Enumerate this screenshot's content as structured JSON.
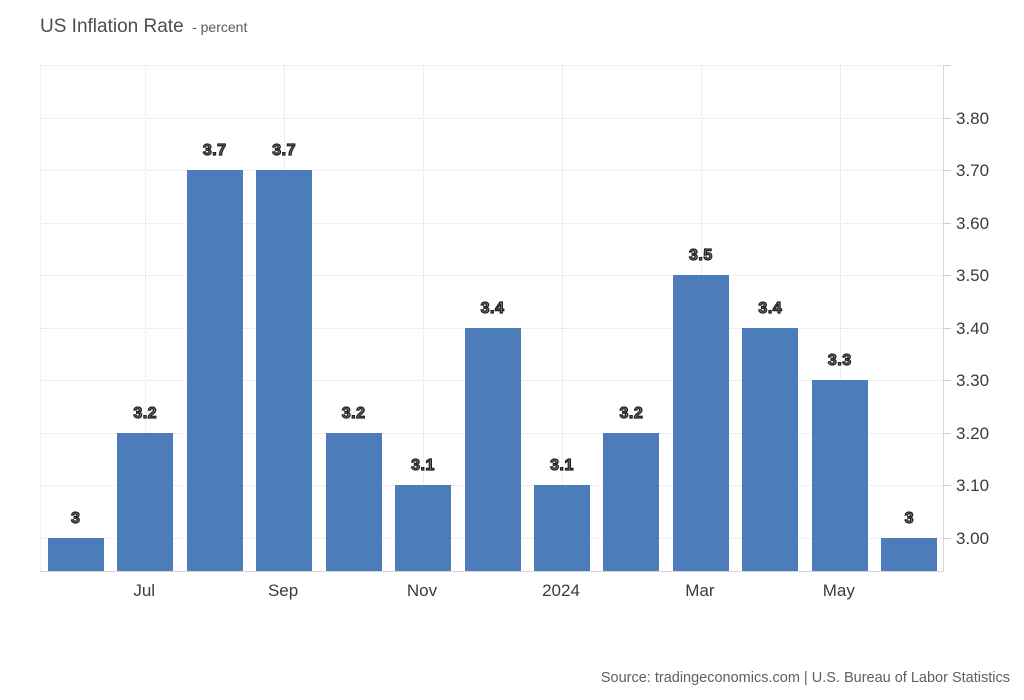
{
  "header": {
    "title": "US Inflation Rate",
    "subtitle": "- percent"
  },
  "footer": {
    "source": "Source: tradingeconomics.com | U.S. Bureau of Labor Statistics"
  },
  "colors": {
    "bar": "#4d7cba",
    "grid": "#e0e0e0",
    "axis_line": "#d6d6d6",
    "title": "#4d4d4d",
    "tick_label": "#3b3b3b",
    "value_label_fill": "#7d7d7d",
    "value_label_stroke": "#1f1f1f",
    "source": "#5f5f5f",
    "background": "#ffffff"
  },
  "chart_data": {
    "type": "bar",
    "title": "US Inflation Rate",
    "subtitle": "percent",
    "categories": [
      "",
      "Jul",
      "",
      "Sep",
      "",
      "Nov",
      "",
      "2024",
      "",
      "Mar",
      "",
      "May",
      ""
    ],
    "values": [
      3,
      3.2,
      3.7,
      3.7,
      3.2,
      3.1,
      3.4,
      3.1,
      3.2,
      3.5,
      3.4,
      3.3,
      3
    ],
    "value_labels": [
      "3",
      "3.2",
      "3.7",
      "3.7",
      "3.2",
      "3.1",
      "3.4",
      "3.1",
      "3.2",
      "3.5",
      "3.4",
      "3.3",
      "3"
    ],
    "x_ticks": [
      {
        "index": 1,
        "label": "Jul"
      },
      {
        "index": 3,
        "label": "Sep"
      },
      {
        "index": 5,
        "label": "Nov"
      },
      {
        "index": 7,
        "label": "2024"
      },
      {
        "index": 9,
        "label": "Mar"
      },
      {
        "index": 11,
        "label": "May"
      }
    ],
    "y_ticks": [
      {
        "value": 3.0,
        "label": "3.00"
      },
      {
        "value": 3.1,
        "label": "3.10"
      },
      {
        "value": 3.2,
        "label": "3.20"
      },
      {
        "value": 3.3,
        "label": "3.30"
      },
      {
        "value": 3.4,
        "label": "3.40"
      },
      {
        "value": 3.5,
        "label": "3.50"
      },
      {
        "value": 3.6,
        "label": "3.60"
      },
      {
        "value": 3.7,
        "label": "3.70"
      },
      {
        "value": 3.8,
        "label": "3.80"
      }
    ],
    "y_grid_values": [
      3.0,
      3.1,
      3.2,
      3.3,
      3.4,
      3.5,
      3.6,
      3.7,
      3.8,
      3.9
    ],
    "ylim": [
      2.937,
      3.9
    ],
    "grid": "dotted",
    "legend": "none",
    "y_axis_position": "right",
    "xlabel": "",
    "ylabel": ""
  }
}
